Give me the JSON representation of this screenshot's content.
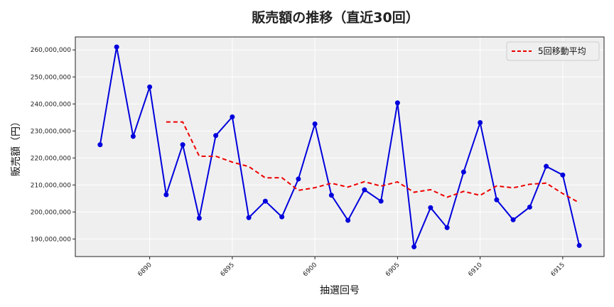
{
  "chart_data": {
    "type": "line",
    "title": "販売額の推移（直近30回）",
    "xlabel": "抽選回号",
    "ylabel": "販売額（円）",
    "x": [
      6887,
      6888,
      6889,
      6890,
      6891,
      6892,
      6893,
      6894,
      6895,
      6896,
      6897,
      6898,
      6899,
      6900,
      6901,
      6902,
      6903,
      6904,
      6905,
      6906,
      6907,
      6908,
      6909,
      6910,
      6911,
      6912,
      6913,
      6914,
      6915,
      6916
    ],
    "series": [
      {
        "name": "販売額",
        "color": "#0000dd",
        "style": "solid",
        "marker": "circle",
        "values": [
          224900000,
          261100000,
          228000000,
          246300000,
          206400000,
          224900000,
          197700000,
          228300000,
          235200000,
          197900000,
          204000000,
          198200000,
          212200000,
          232600000,
          206200000,
          196900000,
          208200000,
          204000000,
          240400000,
          187100000,
          201600000,
          194200000,
          214800000,
          233100000,
          204500000,
          197100000,
          201800000,
          216900000,
          213700000,
          187600000
        ]
      },
      {
        "name": "5回移動平均",
        "color": "#ee0000",
        "style": "dashed",
        "values": [
          null,
          null,
          null,
          null,
          233340000,
          233340000,
          220640000,
          220640000,
          218460000,
          216800000,
          212620000,
          212700000,
          208000000,
          209000000,
          210640000,
          209220000,
          211220000,
          209580000,
          211140000,
          207300000,
          208260000,
          205460000,
          207620000,
          206160000,
          209640000,
          208940000,
          210260000,
          210680000,
          206800000,
          203420000
        ]
      }
    ],
    "xticks": [
      6890,
      6895,
      6900,
      6905,
      6910,
      6915
    ],
    "xtick_labels": [
      "6890",
      "6895",
      "6900",
      "6905",
      "6910",
      "6915"
    ],
    "yticks": [
      190000000,
      200000000,
      210000000,
      220000000,
      230000000,
      240000000,
      250000000,
      260000000
    ],
    "ytick_labels": [
      "190,000,000",
      "200,000,000",
      "210,000,000",
      "220,000,000",
      "230,000,000",
      "240,000,000",
      "250,000,000",
      "260,000,000"
    ],
    "xlim": [
      6885.5,
      6917.5
    ],
    "ylim": [
      183500000,
      264800000
    ],
    "grid": true,
    "legend": {
      "position": "upper right",
      "entries": [
        "5回移動平均"
      ]
    }
  }
}
